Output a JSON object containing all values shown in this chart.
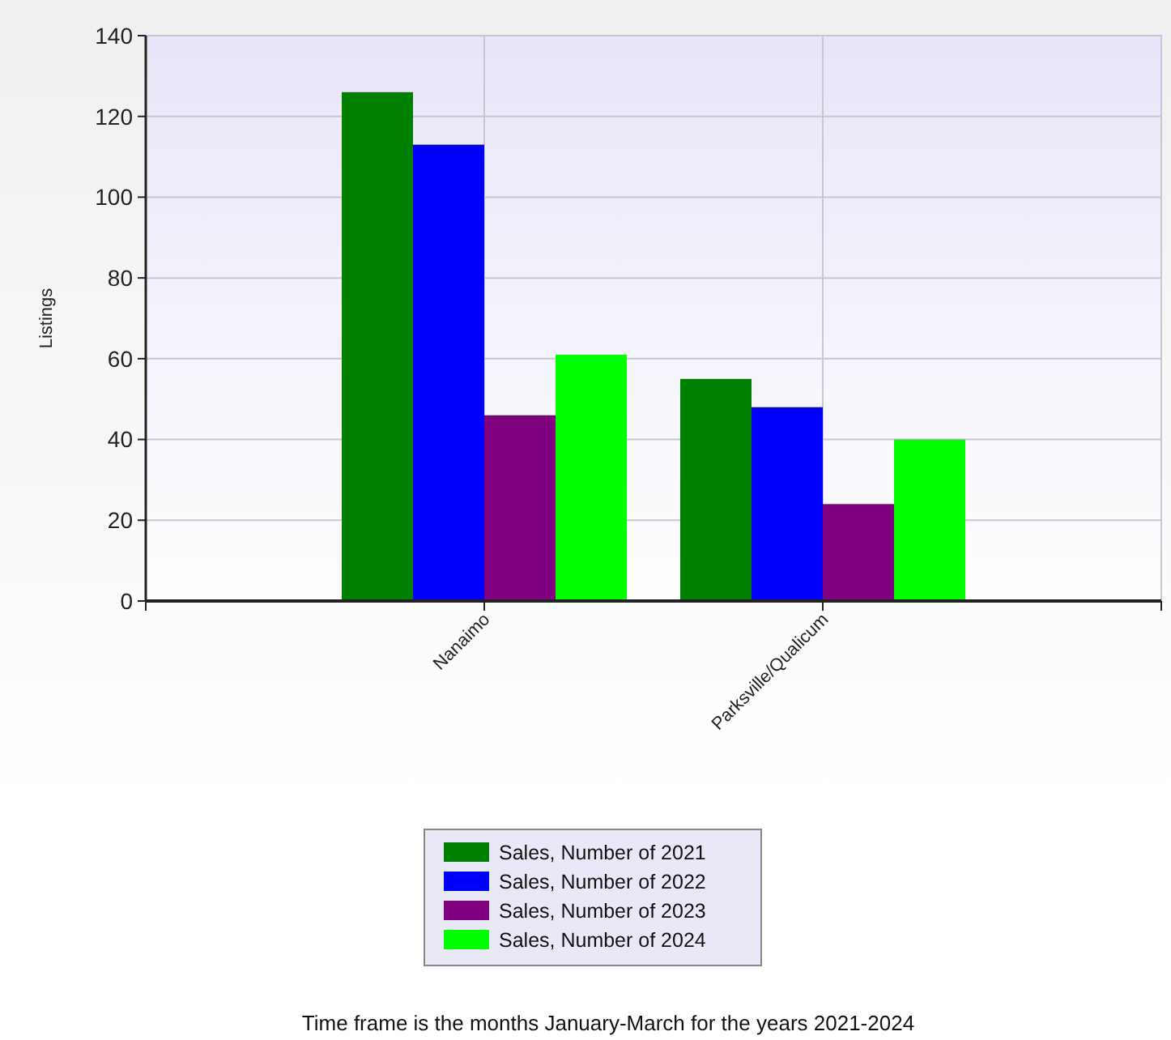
{
  "chart_data": {
    "type": "bar",
    "ylabel": "Listings",
    "categories": [
      "Nanaimo",
      "Parksville/Qualicum"
    ],
    "series": [
      {
        "name": "Sales, Number of 2021",
        "color": "#008000",
        "values": [
          126,
          55
        ]
      },
      {
        "name": "Sales, Number of 2022",
        "color": "#0000ff",
        "values": [
          113,
          48
        ]
      },
      {
        "name": "Sales, Number of 2023",
        "color": "#800080",
        "values": [
          46,
          24
        ]
      },
      {
        "name": "Sales, Number of 2024",
        "color": "#00ff00",
        "values": [
          61,
          40
        ]
      }
    ],
    "ylim": [
      0,
      140
    ],
    "yticks": [
      0,
      20,
      40,
      60,
      80,
      100,
      120,
      140
    ],
    "grid": true,
    "legend": "bottom",
    "annotations": [
      "Time frame is the months January-March for the years 2021-2024"
    ]
  }
}
